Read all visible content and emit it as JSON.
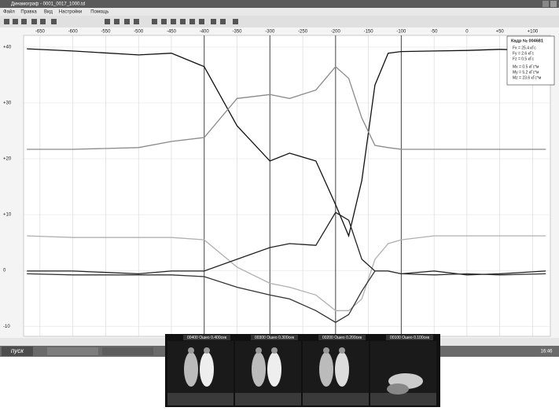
{
  "window": {
    "title": "Динамограф - 0001_0017_1000.td",
    "menu": [
      "Файл",
      "Правка",
      "Вид",
      "Настройки",
      "Помощь"
    ]
  },
  "info_box": {
    "title": "Кадр № 004681",
    "rows": [
      "Fx = 25.4 кГс",
      "Fy = 2.6 кГс",
      "Fz = 0.5 кГс",
      "Mx = 0.5 кГс*м",
      "My = 5.2 кГс*м",
      "Mz = 23.6 кГс*м"
    ]
  },
  "chart_data": {
    "type": "line",
    "x": [
      -670,
      -600,
      -500,
      -450,
      -400,
      -350,
      -300,
      -270,
      -230,
      -200,
      -180,
      -160,
      -140,
      -120,
      -100,
      -50,
      0,
      50,
      120
    ],
    "xlim": [
      -675,
      127
    ],
    "xticks": [
      -650,
      -600,
      -550,
      -500,
      -450,
      -400,
      -350,
      -300,
      -250,
      -200,
      -150,
      -100,
      -50,
      0,
      {
        "value": 50,
        "label": "+50"
      },
      {
        "value": 100,
        "label": "+100"
      }
    ],
    "ylim": [
      -11.8,
      42.1
    ],
    "yticks": [
      {
        "value": 40,
        "label": "+40"
      },
      {
        "value": 30,
        "label": "+30"
      },
      {
        "value": 20,
        "label": "+20"
      },
      {
        "value": 10,
        "label": "+10"
      },
      0,
      -10
    ],
    "grid": true,
    "series": [
      {
        "color": "#111111",
        "values": [
          39.7,
          39.3,
          38.6,
          38.9,
          36.5,
          25.9,
          19.6,
          21,
          19.6,
          11.8,
          6.2,
          16.1,
          33.2,
          38.9,
          39.2,
          39.3,
          39.4,
          39.6,
          39.4
        ]
      },
      {
        "color": "#8a8a8a",
        "values": [
          21.7,
          21.7,
          22,
          23.1,
          23.8,
          30.8,
          31.5,
          30.8,
          32.3,
          36.5,
          34.4,
          27.3,
          22.4,
          22,
          21.7,
          21.7,
          21.7,
          21.7,
          21.7
        ]
      },
      {
        "color": "#b0b0b0",
        "values": [
          6.2,
          5.9,
          5.9,
          5.9,
          5.5,
          0.6,
          -2.3,
          -3,
          -4.4,
          -7.2,
          -7.2,
          -5.1,
          2,
          4.8,
          5.5,
          6.2,
          6.2,
          6.2,
          6.2
        ]
      },
      {
        "color": "#222222",
        "values": [
          -0.1,
          -0.1,
          -0.6,
          -0.1,
          -0.1,
          2,
          4.1,
          4.8,
          4.5,
          10.4,
          9,
          2,
          -0.1,
          -0.1,
          -0.6,
          -0.1,
          -0.8,
          -0.6,
          -0.1
        ]
      },
      {
        "color": "#333333",
        "values": [
          -0.6,
          -0.8,
          -0.8,
          -0.8,
          -1.1,
          -3,
          -4.4,
          -5.1,
          -7.2,
          -9.3,
          -7.9,
          -3.7,
          -0.1,
          -0.1,
          -0.6,
          -0.8,
          -0.6,
          -0.8,
          -0.6
        ]
      }
    ]
  },
  "frames": [
    {
      "x": -400,
      "label": "00400 Ошео 0.400сек"
    },
    {
      "x": -300,
      "label": "00300 Ошео 0.300сек"
    },
    {
      "x": -200,
      "label": "00200 Ошео 0.200сек"
    },
    {
      "x": -100,
      "label": "00100 Ошео 0.100сек"
    }
  ],
  "taskbar": {
    "start": "пуск",
    "time": "16:46"
  }
}
